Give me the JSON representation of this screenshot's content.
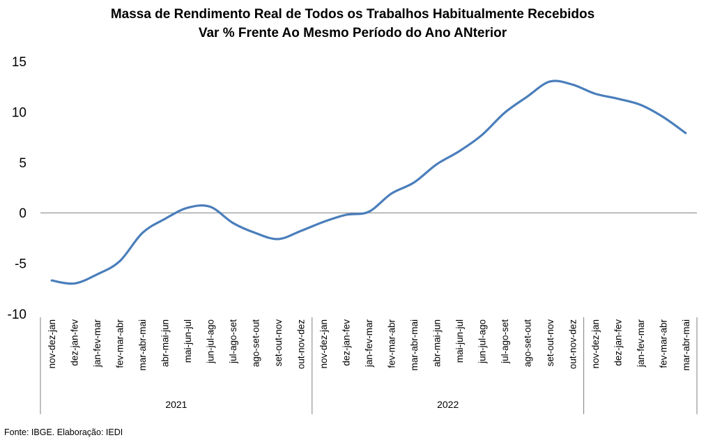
{
  "chart_data": {
    "type": "line",
    "title": "Massa de Rendimento Real de Todos os Trabalhos Habitualmente Recebidos",
    "subtitle": "Var % Frente Ao Mesmo Período do Ano ANterior",
    "xlabel": "",
    "ylabel": "",
    "ylim": [
      -10,
      15
    ],
    "yticks": [
      "15",
      "10",
      "5",
      "0",
      "-5",
      "-10"
    ],
    "grid": false,
    "legend": "none",
    "categories": [
      "nov-dez-jan",
      "dez-jan-fev",
      "jan-fev-mar",
      "fev-mar-abr",
      "mar-abr-mai",
      "abr-mai-jun",
      "mai-jun-jul",
      "jun-jul-ago",
      "jul-ago-set",
      "ago-set-out",
      "set-out-nov",
      "out-nov-dez",
      "nov-dez-jan",
      "dez-jan-fev",
      "jan-fev-mar",
      "fev-mar-abr",
      "mar-abr-mai",
      "abr-mai-jun",
      "mai-jun-jul",
      "jun-jul-ago",
      "jul-ago-set",
      "ago-set-out",
      "set-out-nov",
      "out-nov-dez",
      "nov-dez-jan",
      "dez-jan-fev",
      "jan-fev-mar",
      "fev-mar-abr",
      "mar-abr-mai"
    ],
    "groups": [
      {
        "label": "2021",
        "count": 12
      },
      {
        "label": "2022",
        "count": 12
      },
      {
        "label": "",
        "count": 5
      }
    ],
    "series": [
      {
        "values": [
          -6.7,
          -7.0,
          -6.1,
          -4.8,
          -2.0,
          -0.6,
          0.5,
          0.6,
          -1.0,
          -2.0,
          -2.6,
          -1.8,
          -0.9,
          -0.2,
          0.1,
          1.9,
          3.0,
          4.8,
          6.1,
          7.7,
          9.9,
          11.5,
          13.0,
          12.7,
          11.8,
          11.3,
          10.7,
          9.5,
          7.9
        ],
        "color": "#4a7ebb"
      }
    ],
    "source": "Fonte: IBGE. Elaboração: IEDI"
  }
}
